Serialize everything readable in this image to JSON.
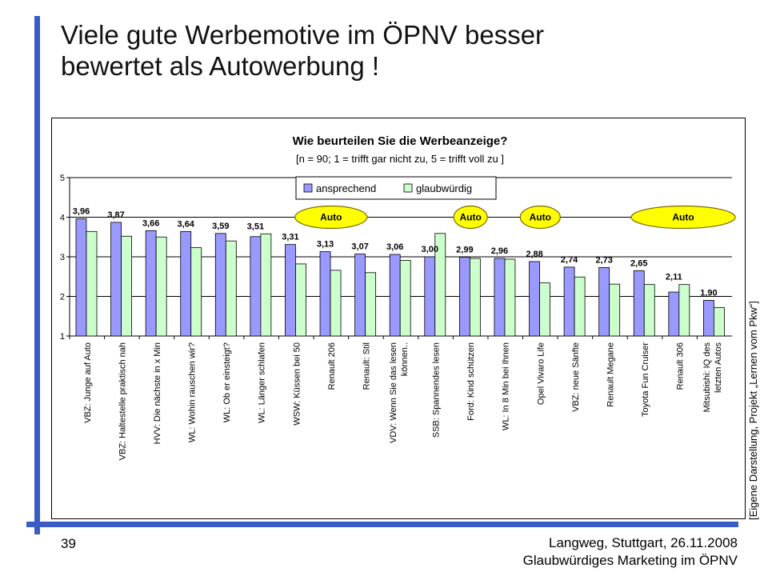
{
  "slide": {
    "title_line1": "Viele gute Werbemotive im ÖPNV besser",
    "title_line2": "bewertet als Autowerbung !",
    "side_note": "[Eigene Darstellung, Projekt „Lernen vom Pkw“]",
    "page_number": "39",
    "footer_line1": "Langweg, Stuttgart, 26.11.2008",
    "footer_line2": "Glaubwürdiges Marketing im ÖPNV",
    "accent_color": "#3a5cc6"
  },
  "chart_data": {
    "type": "bar",
    "title": "Wie beurteilen Sie die Werbeanzeige?",
    "subtitle": "[n = 90; 1 = trifft gar nicht zu, 5 = trifft voll zu ]",
    "ylim": [
      1,
      5
    ],
    "yticks": [
      "1",
      "2",
      "3",
      "4",
      "5"
    ],
    "grid": true,
    "legend_position": "top-center",
    "categories": [
      "VBZ: Junge auf Auto",
      "VBZ: Haltestelle praktisch nah",
      "HVV: Die nächste in x Min",
      "WL: Wohin rauschen wir?",
      "WL: Ob er einsteigt?",
      "WL: Länger schlafen",
      "WSW: Küssen bei 50",
      "Renault 206",
      "Renault: Stil",
      "VDV: Wenn Sie das lesen können..",
      "SSB: Spannendes lesen",
      "Ford: Kind schützen",
      "WL: In 8 Min bei Ihnen",
      "Opel Vivaro Life",
      "VBZ: neue Sänfte",
      "Renault Megane",
      "Toyota Fun Cruiser",
      "Renault 306",
      "Mitsubishi: IQ des letzten Autos"
    ],
    "series": [
      {
        "name": "ansprechend",
        "color": "#9999ff",
        "values": [
          3.96,
          3.87,
          3.66,
          3.64,
          3.59,
          3.51,
          3.31,
          3.13,
          3.07,
          3.06,
          3.0,
          2.99,
          2.96,
          2.88,
          2.74,
          2.73,
          2.65,
          2.11,
          1.9
        ]
      },
      {
        "name": "glaubwürdig",
        "color": "#ccffcc",
        "values": [
          3.64,
          3.52,
          3.5,
          3.23,
          3.4,
          3.58,
          2.82,
          2.66,
          2.6,
          2.91,
          3.59,
          2.96,
          2.94,
          2.34,
          2.49,
          2.31,
          2.3,
          2.3,
          1.72
        ]
      }
    ],
    "value_labels": [
      "3,96",
      "3,87",
      "3,66",
      "3,64",
      "3,59",
      "3,51",
      "3,31",
      "3,13",
      "3,07",
      "3,06",
      "3,00",
      "2,99",
      "2,96",
      "2,88",
      "2,74",
      "2,73",
      "2,65",
      "2,11",
      "1,90"
    ],
    "annotations": [
      {
        "text": "Auto",
        "category": 7,
        "y": 4.0
      },
      {
        "text": "Auto",
        "category": 11,
        "y": 4.0
      },
      {
        "text": "Auto",
        "category": 13,
        "y": 4.0
      },
      {
        "text": "Auto",
        "category": 16,
        "y": 4.0
      }
    ]
  }
}
